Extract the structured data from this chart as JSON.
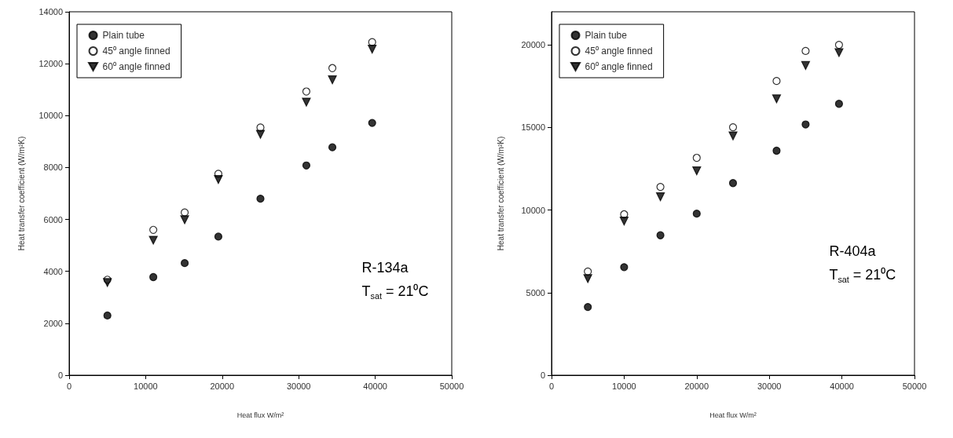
{
  "chart_data": [
    {
      "type": "scatter",
      "xlabel": "Heat flux W/m²",
      "ylabel": "Heat transfer coefficient (W/m²K)",
      "xlim": [
        0,
        50000
      ],
      "xticks": [
        0,
        10000,
        20000,
        30000,
        40000,
        50000
      ],
      "ylim": [
        0,
        14000
      ],
      "yticks": [
        0,
        2000,
        4000,
        6000,
        8000,
        10000,
        12000,
        14000
      ],
      "grid": false,
      "legend": "top left",
      "annotations": [
        "R-134a",
        "T$_{sat}$ = 21⁰C"
      ],
      "x": [
        5000,
        11000,
        15100,
        19500,
        25000,
        31000,
        34400,
        39600
      ],
      "series": [
        {
          "name": "Plain tube",
          "color": "#000000",
          "marker": "circle",
          "values": [
            2300,
            3780,
            4320,
            5340,
            6800,
            8080,
            8780,
            9720
          ]
        },
        {
          "name": "45⁰ angle finned",
          "color": "#ffffff",
          "marker": "circle",
          "values": [
            3680,
            5600,
            6270,
            7760,
            9540,
            10930,
            11830,
            12830
          ]
        },
        {
          "name": "60⁰ angle finned",
          "color": "#000000",
          "marker": "triangle",
          "values": [
            3570,
            5200,
            5990,
            7540,
            9280,
            10520,
            11380,
            12560
          ]
        }
      ]
    },
    {
      "type": "scatter",
      "xlabel": "Heat flux W/m²",
      "ylabel": "Heat transfer coefficient (W/m²K)",
      "xlim": [
        0,
        50000
      ],
      "xticks": [
        0,
        10000,
        20000,
        30000,
        40000,
        50000
      ],
      "ylim": [
        0,
        22000
      ],
      "yticks": [
        0,
        5000,
        10000,
        15000,
        20000
      ],
      "grid": false,
      "legend": "top left",
      "annotations": [
        "R-404a",
        "T$_{sat}$ = 21⁰C"
      ],
      "x": [
        5000,
        10000,
        15000,
        20000,
        25000,
        31000,
        35000,
        39600
      ],
      "series": [
        {
          "name": "Plain tube",
          "color": "#000000",
          "marker": "circle",
          "values": [
            4130,
            6540,
            8470,
            9780,
            11630,
            13590,
            15180,
            16430
          ]
        },
        {
          "name": "45⁰ angle finned",
          "color": "#ffffff",
          "marker": "circle",
          "values": [
            6280,
            9740,
            11400,
            13160,
            15010,
            17810,
            19630,
            20000
          ]
        },
        {
          "name": "60⁰ angle finned",
          "color": "#000000",
          "marker": "triangle",
          "values": [
            5850,
            9330,
            10800,
            12370,
            14490,
            16730,
            18750,
            19530
          ]
        }
      ]
    }
  ]
}
